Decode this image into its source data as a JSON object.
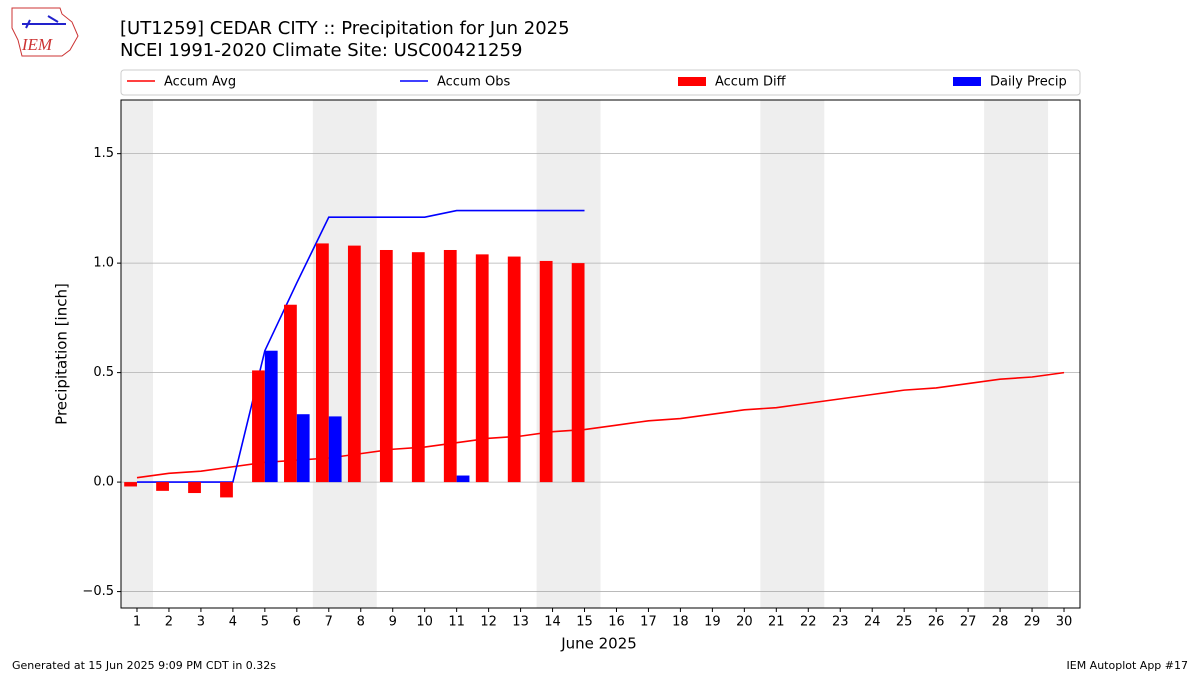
{
  "header": {
    "logo_text": "IEM"
  },
  "chart_data": {
    "type": "combo",
    "title": "[UT1259] CEDAR CITY :: Precipitation for Jun 2025",
    "subtitle": "NCEI 1991-2020 Climate Site: USC00421259",
    "xlabel": "June 2025",
    "ylabel": "Precipitation [inch]",
    "x": [
      1,
      2,
      3,
      4,
      5,
      6,
      7,
      8,
      9,
      10,
      11,
      12,
      13,
      14,
      15,
      16,
      17,
      18,
      19,
      20,
      21,
      22,
      23,
      24,
      25,
      26,
      27,
      28,
      29,
      30
    ],
    "xlim": [
      0.5,
      30.5
    ],
    "xticks": [
      1,
      2,
      3,
      4,
      5,
      6,
      7,
      8,
      9,
      10,
      11,
      12,
      13,
      14,
      15,
      16,
      17,
      18,
      19,
      20,
      21,
      22,
      23,
      24,
      25,
      26,
      27,
      28,
      29,
      30
    ],
    "ylim": [
      -0.575,
      1.745
    ],
    "yticks": [
      {
        "value": -0.5,
        "label": "−0.5"
      },
      {
        "value": 0,
        "label": "0.0"
      },
      {
        "value": 0.5,
        "label": "0.5"
      },
      {
        "value": 1,
        "label": "1.0"
      },
      {
        "value": 1.5,
        "label": "1.5"
      }
    ],
    "grid": true,
    "shaded_ranges": [
      [
        0.5,
        1.5
      ],
      [
        6.5,
        8.5
      ],
      [
        13.5,
        15.5
      ],
      [
        20.5,
        22.5
      ],
      [
        27.5,
        29.5
      ]
    ],
    "series": [
      {
        "name": "Accum Avg",
        "kind": "line",
        "color": "#ff0000",
        "values": [
          0.02,
          0.04,
          0.05,
          0.07,
          0.09,
          0.1,
          0.11,
          0.13,
          0.15,
          0.16,
          0.18,
          0.2,
          0.21,
          0.23,
          0.24,
          0.26,
          0.28,
          0.29,
          0.31,
          0.33,
          0.34,
          0.36,
          0.38,
          0.4,
          0.42,
          0.43,
          0.45,
          0.47,
          0.48,
          0.5
        ]
      },
      {
        "name": "Accum Obs",
        "kind": "line",
        "color": "#0000ff",
        "values": [
          0,
          0,
          0,
          0,
          0.6,
          0.91,
          1.21,
          1.21,
          1.21,
          1.21,
          1.24,
          1.24,
          1.24,
          1.24,
          1.24,
          null,
          null,
          null,
          null,
          null,
          null,
          null,
          null,
          null,
          null,
          null,
          null,
          null,
          null,
          null
        ]
      },
      {
        "name": "Accum Diff",
        "kind": "bar",
        "color": "#ff0000",
        "values": [
          -0.02,
          -0.04,
          -0.05,
          -0.07,
          0.51,
          0.81,
          1.09,
          1.08,
          1.06,
          1.05,
          1.06,
          1.04,
          1.03,
          1.01,
          1.0,
          null,
          null,
          null,
          null,
          null,
          null,
          null,
          null,
          null,
          null,
          null,
          null,
          null,
          null,
          null
        ]
      },
      {
        "name": "Daily Precip",
        "kind": "bar",
        "color": "#0000ff",
        "values": [
          0,
          0,
          0,
          0,
          0.6,
          0.31,
          0.3,
          0,
          0,
          0,
          0.03,
          0,
          0,
          0,
          0,
          null,
          null,
          null,
          null,
          null,
          null,
          null,
          null,
          null,
          null,
          null,
          null,
          null,
          null,
          null
        ]
      }
    ]
  },
  "footer": {
    "left": "Generated at 15 Jun 2025 9:09 PM CDT in 0.32s",
    "right": "IEM Autoplot App #17"
  }
}
